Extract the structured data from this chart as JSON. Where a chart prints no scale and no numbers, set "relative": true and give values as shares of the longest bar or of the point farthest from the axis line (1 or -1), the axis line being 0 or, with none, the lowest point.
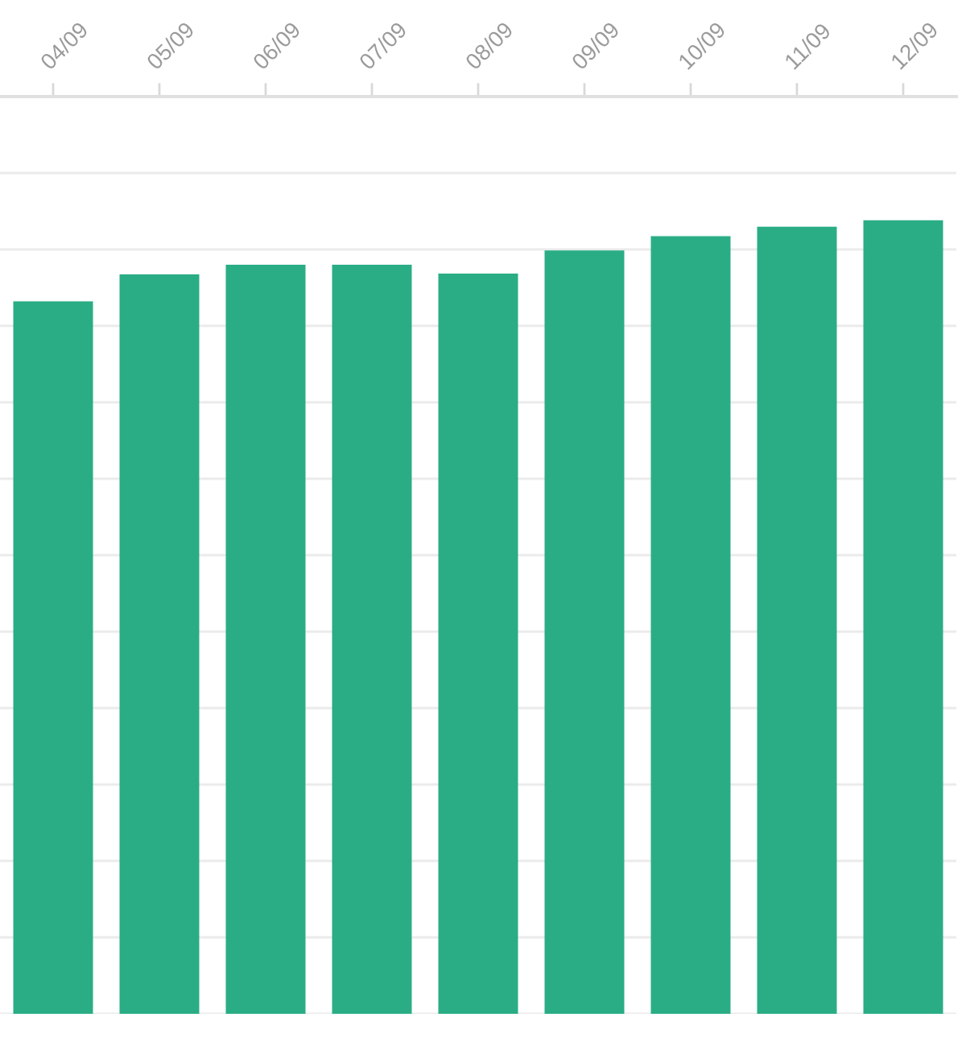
{
  "chart_data": {
    "type": "bar",
    "relative": true,
    "categories": [
      "04/09",
      "05/09",
      "06/09",
      "07/09",
      "08/09",
      "09/09",
      "10/09",
      "11/09",
      "12/09"
    ],
    "values": [
      0.898,
      0.932,
      0.944,
      0.944,
      0.933,
      0.962,
      0.98,
      0.992,
      1
    ],
    "color": "#2aad85",
    "grid": "y"
  }
}
